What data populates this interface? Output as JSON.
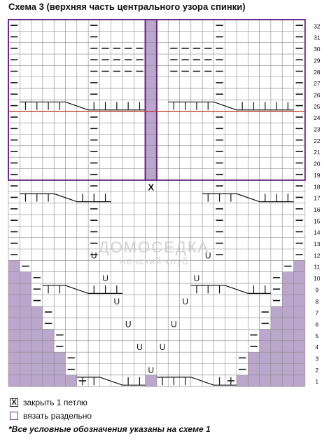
{
  "title": "Схема 3 (верхняя часть центрального узора спинки)",
  "chart": {
    "rows": 32,
    "cols": 26,
    "purple_cells": [
      [
        11,
        1
      ],
      [
        10,
        1
      ],
      [
        10,
        2
      ],
      [
        9,
        1
      ],
      [
        9,
        2
      ],
      [
        8,
        1
      ],
      [
        8,
        2
      ],
      [
        7,
        1
      ],
      [
        7,
        2
      ],
      [
        7,
        3
      ],
      [
        6,
        1
      ],
      [
        6,
        2
      ],
      [
        6,
        3
      ],
      [
        5,
        1
      ],
      [
        5,
        2
      ],
      [
        5,
        3
      ],
      [
        5,
        4
      ],
      [
        4,
        1
      ],
      [
        4,
        2
      ],
      [
        4,
        3
      ],
      [
        4,
        4
      ],
      [
        3,
        1
      ],
      [
        3,
        2
      ],
      [
        3,
        3
      ],
      [
        3,
        4
      ],
      [
        3,
        5
      ],
      [
        2,
        1
      ],
      [
        2,
        2
      ],
      [
        2,
        3
      ],
      [
        2,
        4
      ],
      [
        2,
        5
      ],
      [
        1,
        1
      ],
      [
        1,
        2
      ],
      [
        1,
        3
      ],
      [
        1,
        4
      ],
      [
        1,
        5
      ],
      [
        1,
        6
      ],
      [
        11,
        26
      ],
      [
        10,
        26
      ],
      [
        10,
        25
      ],
      [
        9,
        26
      ],
      [
        9,
        25
      ],
      [
        8,
        26
      ],
      [
        8,
        25
      ],
      [
        7,
        26
      ],
      [
        7,
        25
      ],
      [
        7,
        24
      ],
      [
        6,
        26
      ],
      [
        6,
        25
      ],
      [
        6,
        24
      ],
      [
        5,
        26
      ],
      [
        5,
        25
      ],
      [
        5,
        24
      ],
      [
        5,
        23
      ],
      [
        4,
        26
      ],
      [
        4,
        25
      ],
      [
        4,
        24
      ],
      [
        4,
        23
      ],
      [
        3,
        26
      ],
      [
        3,
        25
      ],
      [
        3,
        24
      ],
      [
        3,
        23
      ],
      [
        3,
        22
      ],
      [
        2,
        26
      ],
      [
        2,
        25
      ],
      [
        2,
        24
      ],
      [
        2,
        23
      ],
      [
        2,
        22
      ],
      [
        1,
        26
      ],
      [
        1,
        25
      ],
      [
        1,
        24
      ],
      [
        1,
        23
      ],
      [
        1,
        22
      ],
      [
        1,
        21
      ],
      [
        1,
        13
      ],
      [
        19,
        13
      ],
      [
        20,
        13
      ],
      [
        21,
        13
      ],
      [
        22,
        13
      ],
      [
        23,
        13
      ],
      [
        24,
        13
      ],
      [
        25,
        13
      ],
      [
        26,
        13
      ],
      [
        27,
        13
      ],
      [
        28,
        13
      ],
      [
        29,
        13
      ],
      [
        30,
        13
      ],
      [
        31,
        13
      ],
      [
        32,
        13
      ]
    ],
    "x_cells": [
      [
        18,
        13
      ]
    ],
    "u_cells": [
      [
        12,
        8
      ],
      [
        10,
        9
      ],
      [
        8,
        10
      ],
      [
        6,
        11
      ],
      [
        4,
        12
      ],
      [
        2,
        13
      ],
      [
        12,
        18
      ],
      [
        10,
        17
      ],
      [
        8,
        16
      ],
      [
        6,
        15
      ],
      [
        4,
        14
      ]
    ],
    "purl_cells": [
      [
        32,
        1
      ],
      [
        31,
        1
      ],
      [
        30,
        1
      ],
      [
        29,
        1
      ],
      [
        28,
        1
      ],
      [
        27,
        1
      ],
      [
        26,
        1
      ],
      [
        25,
        1
      ],
      [
        24,
        1
      ],
      [
        23,
        1
      ],
      [
        22,
        1
      ],
      [
        21,
        1
      ],
      [
        20,
        1
      ],
      [
        19,
        1
      ],
      [
        32,
        26
      ],
      [
        31,
        26
      ],
      [
        30,
        26
      ],
      [
        29,
        26
      ],
      [
        28,
        26
      ],
      [
        27,
        26
      ],
      [
        26,
        26
      ],
      [
        25,
        26
      ],
      [
        24,
        26
      ],
      [
        23,
        26
      ],
      [
        22,
        26
      ],
      [
        21,
        26
      ],
      [
        20,
        26
      ],
      [
        19,
        26
      ],
      [
        18,
        1
      ],
      [
        17,
        1
      ],
      [
        16,
        1
      ],
      [
        15,
        1
      ],
      [
        14,
        1
      ],
      [
        13,
        1
      ],
      [
        12,
        1
      ],
      [
        18,
        26
      ],
      [
        17,
        26
      ],
      [
        16,
        26
      ],
      [
        15,
        26
      ],
      [
        14,
        26
      ],
      [
        13,
        26
      ],
      [
        12,
        26
      ],
      [
        11,
        2
      ],
      [
        10,
        3
      ],
      [
        9,
        3
      ],
      [
        8,
        3
      ],
      [
        7,
        4
      ],
      [
        6,
        4
      ],
      [
        5,
        5
      ],
      [
        4,
        5
      ],
      [
        3,
        6
      ],
      [
        2,
        6
      ],
      [
        1,
        7
      ],
      [
        11,
        25
      ],
      [
        10,
        24
      ],
      [
        9,
        24
      ],
      [
        8,
        24
      ],
      [
        7,
        23
      ],
      [
        6,
        23
      ],
      [
        5,
        22
      ],
      [
        4,
        22
      ],
      [
        3,
        21
      ],
      [
        2,
        21
      ],
      [
        1,
        20
      ],
      [
        32,
        8
      ],
      [
        31,
        8
      ],
      [
        30,
        8
      ],
      [
        29,
        8
      ],
      [
        28,
        8
      ],
      [
        27,
        8
      ],
      [
        26,
        8
      ],
      [
        24,
        8
      ],
      [
        23,
        8
      ],
      [
        22,
        8
      ],
      [
        21,
        8
      ],
      [
        20,
        8
      ],
      [
        19,
        8
      ],
      [
        32,
        19
      ],
      [
        31,
        19
      ],
      [
        30,
        19
      ],
      [
        29,
        19
      ],
      [
        28,
        19
      ],
      [
        27,
        19
      ],
      [
        26,
        19
      ],
      [
        24,
        19
      ],
      [
        23,
        19
      ],
      [
        22,
        19
      ],
      [
        21,
        19
      ],
      [
        20,
        19
      ],
      [
        19,
        19
      ],
      [
        18,
        8
      ],
      [
        16,
        8
      ],
      [
        15,
        8
      ],
      [
        14,
        8
      ],
      [
        13,
        8
      ],
      [
        12,
        8
      ],
      [
        18,
        19
      ],
      [
        16,
        19
      ],
      [
        15,
        19
      ],
      [
        14,
        19
      ],
      [
        13,
        19
      ],
      [
        12,
        19
      ],
      [
        30,
        9
      ],
      [
        30,
        10
      ],
      [
        30,
        11
      ],
      [
        30,
        12
      ],
      [
        30,
        15
      ],
      [
        30,
        16
      ],
      [
        30,
        17
      ],
      [
        30,
        18
      ],
      [
        29,
        9
      ],
      [
        29,
        10
      ],
      [
        29,
        11
      ],
      [
        29,
        12
      ],
      [
        29,
        15
      ],
      [
        29,
        16
      ],
      [
        29,
        17
      ],
      [
        29,
        18
      ],
      [
        28,
        9
      ],
      [
        28,
        10
      ],
      [
        28,
        11
      ],
      [
        28,
        12
      ],
      [
        28,
        15
      ],
      [
        28,
        16
      ],
      [
        28,
        17
      ],
      [
        28,
        18
      ]
    ],
    "knit_runs": [
      {
        "row": 25,
        "cols": [
          2,
          3,
          4,
          5,
          6,
          7,
          8,
          9,
          10,
          11,
          12
        ],
        "cable": [
          6,
          7
        ]
      },
      {
        "row": 25,
        "cols": [
          15,
          16,
          17,
          18,
          19,
          20,
          21,
          22,
          23,
          24,
          25
        ],
        "cable": [
          19,
          20
        ]
      },
      {
        "row": 17,
        "cols": [
          2,
          3,
          4,
          5,
          6,
          7,
          8,
          9
        ],
        "cable": [
          5,
          6
        ]
      },
      {
        "row": 17,
        "cols": [
          18,
          19,
          20,
          21,
          22,
          23,
          24,
          25
        ],
        "cable": [
          21,
          22
        ]
      },
      {
        "row": 9,
        "cols": [
          4,
          5,
          6,
          7,
          8,
          9,
          10
        ],
        "cable": [
          6,
          7
        ]
      },
      {
        "row": 9,
        "cols": [
          17,
          18,
          19,
          20,
          21,
          22,
          23
        ],
        "cable": [
          20,
          21
        ]
      },
      {
        "row": 1,
        "cols": [
          7,
          8,
          9,
          10,
          11,
          12
        ],
        "cable": [
          9,
          10
        ]
      },
      {
        "row": 1,
        "cols": [
          14,
          15,
          16,
          17,
          18,
          19,
          20
        ],
        "cable": [
          17,
          18
        ]
      }
    ],
    "row_numbers": [
      32,
      31,
      30,
      29,
      28,
      27,
      26,
      25,
      24,
      23,
      22,
      21,
      20,
      19,
      18,
      17,
      16,
      15,
      14,
      13,
      12,
      11,
      10,
      9,
      8,
      7,
      6,
      5,
      4,
      3,
      2,
      1
    ]
  },
  "colors": {
    "grid": "#8a8a8a",
    "purple_fill": "#bba6cc",
    "frame": "#6b2b86",
    "red_line": "#c0392b",
    "ink": "#111111"
  },
  "watermark": {
    "line1": "ДОМОСЕДКА",
    "line2": "женский клуб"
  },
  "legend": {
    "x_symbol": "X",
    "x_label": "закрыть 1 петлю",
    "purple_label": "вязать раздельно"
  },
  "note": "*Все условные обозначения указаны на схеме 1"
}
